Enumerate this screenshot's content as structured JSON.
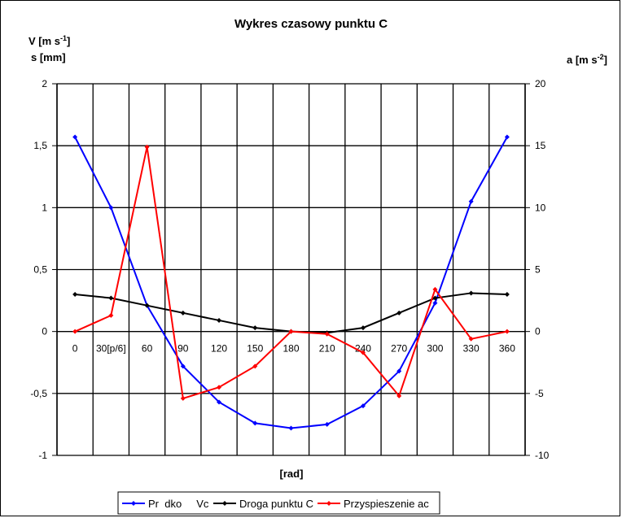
{
  "chart_data": {
    "type": "line",
    "title": "Wykres czasowy punktu C",
    "xlabel": "[rad]",
    "ylabel_left_line1": "V [m s",
    "ylabel_left_line1_sup": "-1",
    "ylabel_left_line1_end": "]",
    "ylabel_left_line2": "s [mm]",
    "ylabel_right": "a [m s",
    "ylabel_right_sup": "-2",
    "ylabel_right_end": "]",
    "categories": [
      "0",
      "30[p/6]",
      "60",
      "90",
      "120",
      "150",
      "180",
      "210",
      "240",
      "270",
      "300",
      "330",
      "360"
    ],
    "ylim_left": [
      -1,
      2
    ],
    "ylim_right": [
      -10,
      20
    ],
    "yticks_left": [
      "-1",
      "-0,5",
      "0",
      "0,5",
      "1",
      "1,5",
      "2"
    ],
    "yticks_right": [
      "-10",
      "-5",
      "0",
      "5",
      "10",
      "15",
      "20"
    ],
    "grid": true,
    "legend_position": "bottom",
    "series": [
      {
        "name": "Pr  dko     Vc",
        "axis": "left",
        "color": "#0000FF",
        "values": [
          1.57,
          1.0,
          0.21,
          -0.28,
          -0.57,
          -0.74,
          -0.78,
          -0.75,
          -0.6,
          -0.32,
          0.23,
          1.05,
          1.57
        ]
      },
      {
        "name": "Droga punktu C",
        "axis": "left",
        "color": "#000000",
        "values": [
          0.3,
          0.27,
          0.21,
          0.15,
          0.09,
          0.03,
          0.0,
          -0.01,
          0.03,
          0.15,
          0.27,
          0.31,
          0.3
        ]
      },
      {
        "name": "Przyspieszenie ac",
        "axis": "right",
        "color": "#FF0000",
        "values": [
          0.0,
          1.3,
          14.9,
          -5.4,
          -4.5,
          -2.8,
          0.0,
          -0.2,
          -1.7,
          -5.2,
          3.4,
          -0.6,
          0.0
        ]
      }
    ]
  }
}
